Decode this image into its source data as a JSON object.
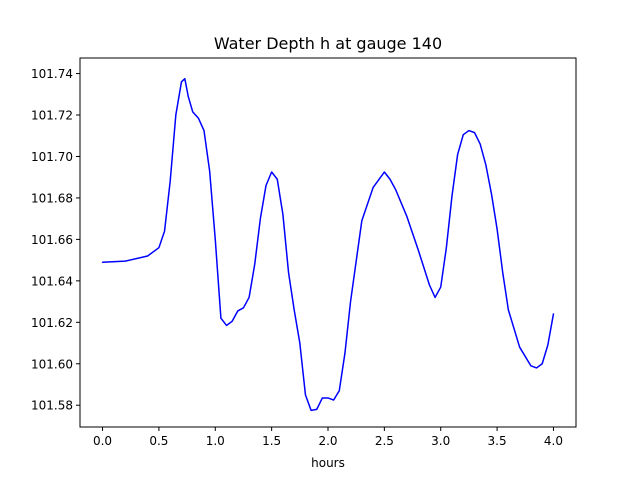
{
  "chart_data": {
    "type": "line",
    "title": "Water Depth h at gauge 140",
    "xlabel": "hours",
    "ylabel": "",
    "xlim": [
      -0.2,
      4.2
    ],
    "ylim": [
      101.5695,
      101.7475
    ],
    "xticks": [
      0.0,
      0.5,
      1.0,
      1.5,
      2.0,
      2.5,
      3.0,
      3.5,
      4.0
    ],
    "xtick_labels": [
      "0.0",
      "0.5",
      "1.0",
      "1.5",
      "2.0",
      "2.5",
      "3.0",
      "3.5",
      "4.0"
    ],
    "yticks": [
      101.58,
      101.6,
      101.62,
      101.64,
      101.66,
      101.68,
      101.7,
      101.72,
      101.74
    ],
    "ytick_labels": [
      "101.58",
      "101.60",
      "101.62",
      "101.64",
      "101.66",
      "101.68",
      "101.70",
      "101.72",
      "101.74"
    ],
    "grid": false,
    "series": [
      {
        "color": "#0000ff",
        "x": [
          0.0,
          0.2,
          0.4,
          0.5,
          0.55,
          0.6,
          0.65,
          0.7,
          0.73,
          0.76,
          0.8,
          0.85,
          0.9,
          0.95,
          1.0,
          1.05,
          1.1,
          1.15,
          1.2,
          1.25,
          1.3,
          1.35,
          1.4,
          1.45,
          1.5,
          1.55,
          1.6,
          1.65,
          1.7,
          1.75,
          1.8,
          1.85,
          1.9,
          1.95,
          2.0,
          2.05,
          2.1,
          2.15,
          2.2,
          2.3,
          2.4,
          2.5,
          2.55,
          2.6,
          2.7,
          2.8,
          2.9,
          2.95,
          3.0,
          3.05,
          3.1,
          3.15,
          3.2,
          3.25,
          3.3,
          3.35,
          3.4,
          3.45,
          3.5,
          3.55,
          3.6,
          3.7,
          3.8,
          3.85,
          3.9,
          3.95,
          4.0
        ],
        "y": [
          101.649,
          101.6495,
          101.652,
          101.656,
          101.664,
          101.688,
          101.72,
          101.736,
          101.7375,
          101.729,
          101.7215,
          101.7185,
          101.7125,
          101.693,
          101.66,
          101.622,
          101.6185,
          101.6205,
          101.6255,
          101.627,
          101.632,
          101.648,
          101.67,
          101.686,
          101.6925,
          101.689,
          101.672,
          101.644,
          101.626,
          101.61,
          101.585,
          101.5775,
          101.578,
          101.5835,
          101.5835,
          101.5825,
          101.587,
          101.605,
          101.63,
          101.669,
          101.685,
          101.6925,
          101.689,
          101.684,
          101.671,
          101.655,
          101.638,
          101.632,
          101.637,
          101.656,
          101.681,
          101.701,
          101.7105,
          101.7125,
          101.7115,
          101.706,
          101.696,
          101.682,
          101.665,
          101.644,
          101.626,
          101.608,
          101.599,
          101.598,
          101.6,
          101.609,
          101.624
        ]
      }
    ]
  }
}
